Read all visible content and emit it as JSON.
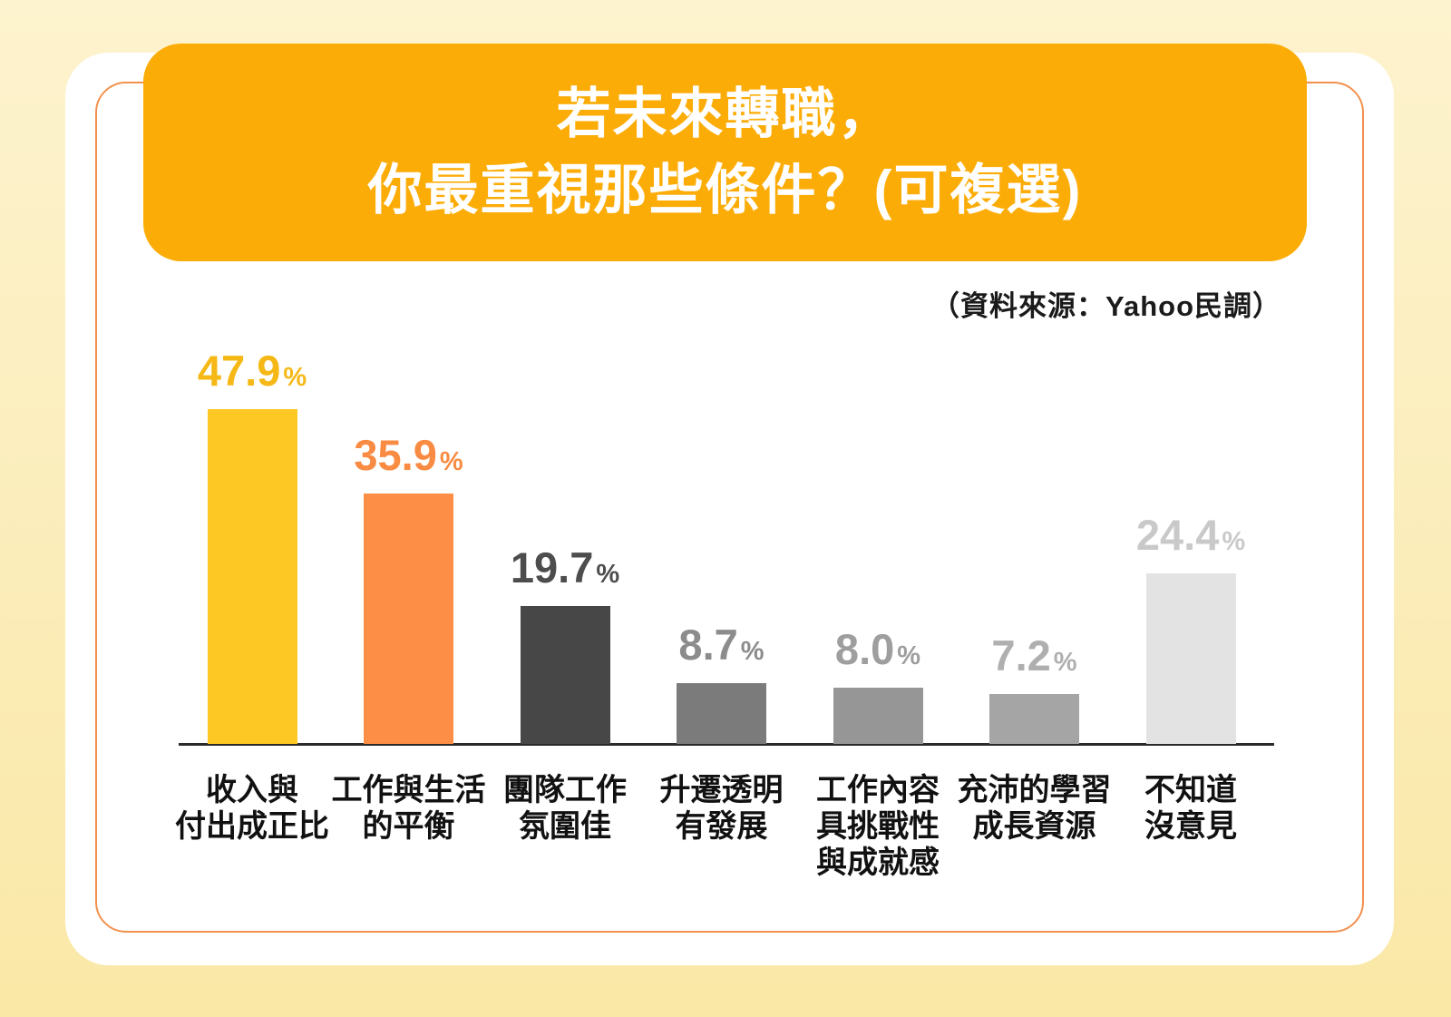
{
  "page": {
    "background_top": "#FDF3CE",
    "background_bottom": "#FAE8A6",
    "card_color": "#FFFFFF",
    "inner_border_color": "#F2914E"
  },
  "header": {
    "banner_color": "#FCAC07",
    "text_color": "#FFFFFF",
    "title_line1": "若未來轉職，",
    "title_line2": "你最重視那些條件？(可複選)"
  },
  "source_note": "（資料來源：Yahoo民調）",
  "chart_data": {
    "type": "bar",
    "title": "若未來轉職，你最重視那些條件？(可複選)",
    "source": "（資料來源：Yahoo民調）",
    "unit": "%",
    "percent_sign": "%",
    "ylim": [
      0,
      50
    ],
    "grid": false,
    "legend": "none",
    "axis_line_color": "#2B2B2B",
    "categories": [
      "收入與付出成正比",
      "工作與生活的平衡",
      "團隊工作氛圍佳",
      "升遷透明有發展",
      "工作內容具挑戰性與成就感",
      "充沛的學習成長資源",
      "不知道沒意見"
    ],
    "values": [
      47.9,
      35.9,
      19.7,
      8.7,
      8.0,
      7.2,
      24.4
    ],
    "bars": [
      {
        "label_lines": [
          "收入與",
          "付出成正比"
        ],
        "value": 47.9,
        "value_label": "47.9",
        "bar_color": "#FDC724",
        "label_color": "#F5B816"
      },
      {
        "label_lines": [
          "工作與生活",
          "的平衡"
        ],
        "value": 35.9,
        "value_label": "35.9",
        "bar_color": "#FC8E45",
        "label_color": "#F98B42"
      },
      {
        "label_lines": [
          "團隊工作",
          "氛圍佳"
        ],
        "value": 19.7,
        "value_label": "19.7",
        "bar_color": "#474747",
        "label_color": "#4D4D4D"
      },
      {
        "label_lines": [
          "升遷透明",
          "有發展"
        ],
        "value": 8.7,
        "value_label": "8.7",
        "bar_color": "#7B7B7B",
        "label_color": "#8C8C8C"
      },
      {
        "label_lines": [
          "工作內容",
          "具挑戰性",
          "與成就感"
        ],
        "value": 8.0,
        "value_label": "8.0",
        "bar_color": "#969696",
        "label_color": "#9E9E9E"
      },
      {
        "label_lines": [
          "充沛的學習",
          "成長資源"
        ],
        "value": 7.2,
        "value_label": "7.2",
        "bar_color": "#A5A5A5",
        "label_color": "#AFAFAF"
      },
      {
        "label_lines": [
          "不知道",
          "沒意見"
        ],
        "value": 24.4,
        "value_label": "24.4",
        "bar_color": "#E3E3E3",
        "label_color": "#C9C9C9"
      }
    ]
  }
}
